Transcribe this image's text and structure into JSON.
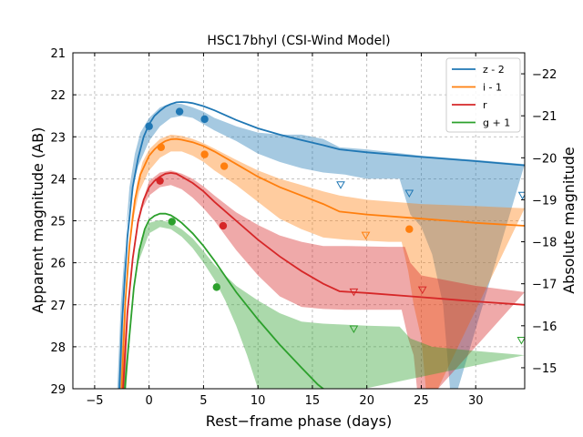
{
  "chart_data": {
    "type": "line",
    "title": "HSC17bhyl (CSI-Wind Model)",
    "xlabel": "Rest−frame phase (days)",
    "ylabel": "Apparent magnitude (AB)",
    "ylabel_right": "Absolute magnitude",
    "xlim": [
      -7,
      34.5
    ],
    "ylim": [
      29,
      21
    ],
    "ylim_right": [
      -14.5,
      -22.5
    ],
    "grid": true,
    "legend_position": "top-right",
    "x_ticks": [
      -5,
      0,
      5,
      10,
      15,
      20,
      25,
      30
    ],
    "y_ticks": [
      21,
      22,
      23,
      24,
      25,
      26,
      27,
      28,
      29
    ],
    "y_ticks_right": [
      -15,
      -16,
      -17,
      -18,
      -19,
      -20,
      -21,
      -22
    ],
    "series": [
      {
        "name": "z - 2",
        "color": "#1f77b4",
        "model": [
          [
            -2.8,
            29.5
          ],
          [
            -2.5,
            27.5
          ],
          [
            -2.0,
            25.4
          ],
          [
            -1.5,
            24.2
          ],
          [
            -1.0,
            23.5
          ],
          [
            -0.5,
            23.0
          ],
          [
            0,
            22.7
          ],
          [
            0.5,
            22.5
          ],
          [
            1.0,
            22.38
          ],
          [
            1.5,
            22.28
          ],
          [
            2.0,
            22.22
          ],
          [
            2.5,
            22.18
          ],
          [
            3.0,
            22.17
          ],
          [
            3.5,
            22.18
          ],
          [
            4.0,
            22.2
          ],
          [
            5.0,
            22.27
          ],
          [
            6.0,
            22.37
          ],
          [
            8.0,
            22.6
          ],
          [
            10.0,
            22.8
          ],
          [
            12.0,
            22.95
          ],
          [
            14.0,
            23.08
          ],
          [
            16.0,
            23.2
          ],
          [
            17.5,
            23.3
          ],
          [
            20.0,
            23.37
          ],
          [
            25.0,
            23.48
          ],
          [
            30.0,
            23.58
          ],
          [
            34.5,
            23.68
          ]
        ],
        "band_upper": [
          [
            -2.6,
            29.5
          ],
          [
            -2.2,
            25.5
          ],
          [
            -1.8,
            24.2
          ],
          [
            -1.3,
            23.4
          ],
          [
            -0.8,
            22.9
          ],
          [
            0,
            22.55
          ],
          [
            1.0,
            22.3
          ],
          [
            2.0,
            22.2
          ],
          [
            3.0,
            22.22
          ],
          [
            4.0,
            22.3
          ],
          [
            5.0,
            22.4
          ],
          [
            6.0,
            22.55
          ],
          [
            8.0,
            22.75
          ],
          [
            10.0,
            22.9
          ],
          [
            12.0,
            22.95
          ],
          [
            14.0,
            22.95
          ],
          [
            16.0,
            23.05
          ],
          [
            17.5,
            23.25
          ],
          [
            20.0,
            23.3
          ],
          [
            25.0,
            23.45
          ],
          [
            30.0,
            23.55
          ],
          [
            34.5,
            23.65
          ]
        ],
        "band_lower": [
          [
            -3.0,
            29.5
          ],
          [
            -2.6,
            27.0
          ],
          [
            -2.1,
            25.2
          ],
          [
            -1.6,
            24.3
          ],
          [
            -1.0,
            23.7
          ],
          [
            0,
            23.1
          ],
          [
            1.0,
            22.75
          ],
          [
            2.0,
            22.55
          ],
          [
            3.0,
            22.5
          ],
          [
            4.0,
            22.55
          ],
          [
            5.0,
            22.7
          ],
          [
            6.0,
            22.85
          ],
          [
            8.0,
            23.1
          ],
          [
            10.0,
            23.4
          ],
          [
            12.0,
            23.6
          ],
          [
            14.0,
            23.75
          ],
          [
            16.0,
            23.85
          ],
          [
            18.0,
            23.9
          ],
          [
            20.0,
            24.0
          ],
          [
            23.0,
            24.0
          ],
          [
            24.0,
            24.85
          ],
          [
            25.0,
            25.15
          ],
          [
            26.0,
            25.8
          ],
          [
            27.0,
            27.0
          ],
          [
            27.8,
            29.5
          ]
        ],
        "points": [
          [
            0,
            22.75
          ],
          [
            2.8,
            22.4
          ],
          [
            5.1,
            22.58
          ]
        ],
        "upper_limits": [
          [
            17.6,
            24.15
          ],
          [
            23.9,
            24.35
          ],
          [
            34.3,
            24.4
          ]
        ]
      },
      {
        "name": "i - 1",
        "color": "#ff7f0e",
        "model": [
          [
            -2.6,
            29.5
          ],
          [
            -2.2,
            27.0
          ],
          [
            -1.8,
            25.6
          ],
          [
            -1.3,
            24.5
          ],
          [
            -0.8,
            23.9
          ],
          [
            0,
            23.45
          ],
          [
            0.5,
            23.3
          ],
          [
            1.0,
            23.18
          ],
          [
            1.5,
            23.1
          ],
          [
            2.0,
            23.06
          ],
          [
            2.5,
            23.05
          ],
          [
            3.0,
            23.07
          ],
          [
            4.0,
            23.13
          ],
          [
            5.0,
            23.22
          ],
          [
            6.0,
            23.35
          ],
          [
            8.0,
            23.65
          ],
          [
            10.0,
            23.95
          ],
          [
            12.0,
            24.2
          ],
          [
            14.0,
            24.4
          ],
          [
            16.0,
            24.6
          ],
          [
            17.5,
            24.78
          ],
          [
            20.0,
            24.85
          ],
          [
            25.0,
            24.95
          ],
          [
            30.0,
            25.05
          ],
          [
            34.5,
            25.12
          ]
        ],
        "band_upper": [
          [
            -2.4,
            29.5
          ],
          [
            -2.0,
            26.0
          ],
          [
            -1.6,
            24.9
          ],
          [
            -1.1,
            24.1
          ],
          [
            -0.6,
            23.6
          ],
          [
            0,
            23.3
          ],
          [
            1.0,
            23.05
          ],
          [
            2.0,
            22.95
          ],
          [
            3.0,
            22.98
          ],
          [
            4.0,
            23.05
          ],
          [
            5.0,
            23.15
          ],
          [
            6.0,
            23.28
          ],
          [
            8.0,
            23.55
          ],
          [
            10.0,
            23.8
          ],
          [
            12.0,
            24.0
          ],
          [
            14.0,
            24.15
          ],
          [
            16.0,
            24.3
          ],
          [
            17.5,
            24.4
          ],
          [
            20.0,
            24.5
          ],
          [
            25.0,
            24.6
          ],
          [
            30.0,
            24.65
          ],
          [
            34.5,
            24.7
          ]
        ],
        "band_lower": [
          [
            -2.8,
            29.5
          ],
          [
            -2.4,
            27.5
          ],
          [
            -1.9,
            25.8
          ],
          [
            -1.4,
            24.9
          ],
          [
            -0.9,
            24.3
          ],
          [
            0,
            23.8
          ],
          [
            1.0,
            23.5
          ],
          [
            2.0,
            23.35
          ],
          [
            3.0,
            23.35
          ],
          [
            4.0,
            23.45
          ],
          [
            5.0,
            23.6
          ],
          [
            6.0,
            23.8
          ],
          [
            8.0,
            24.15
          ],
          [
            10.0,
            24.55
          ],
          [
            12.0,
            24.95
          ],
          [
            14.0,
            25.2
          ],
          [
            16.0,
            25.4
          ],
          [
            18.0,
            25.45
          ],
          [
            22.0,
            25.5
          ],
          [
            23.2,
            25.5
          ],
          [
            23.8,
            26.2
          ],
          [
            24.3,
            27.0
          ],
          [
            25.0,
            27.8
          ],
          [
            25.6,
            29.5
          ]
        ],
        "points": [
          [
            1.1,
            23.25
          ],
          [
            5.1,
            23.42
          ],
          [
            6.9,
            23.7
          ],
          [
            23.9,
            25.2
          ]
        ],
        "upper_limits": [
          [
            19.9,
            25.35
          ]
        ]
      },
      {
        "name": "r",
        "color": "#d62728",
        "model": [
          [
            -2.5,
            29.5
          ],
          [
            -2.0,
            27.2
          ],
          [
            -1.5,
            25.9
          ],
          [
            -1.0,
            25.0
          ],
          [
            -0.5,
            24.5
          ],
          [
            0,
            24.2
          ],
          [
            0.5,
            24.05
          ],
          [
            1.0,
            23.95
          ],
          [
            1.5,
            23.88
          ],
          [
            2.0,
            23.86
          ],
          [
            2.5,
            23.88
          ],
          [
            3.0,
            23.95
          ],
          [
            4.0,
            24.1
          ],
          [
            5.0,
            24.3
          ],
          [
            6.0,
            24.55
          ],
          [
            8.0,
            25.0
          ],
          [
            10.0,
            25.45
          ],
          [
            12.0,
            25.85
          ],
          [
            14.0,
            26.2
          ],
          [
            16.0,
            26.5
          ],
          [
            17.5,
            26.68
          ],
          [
            20.0,
            26.72
          ],
          [
            25.0,
            26.82
          ],
          [
            30.0,
            26.92
          ],
          [
            34.5,
            27.0
          ]
        ],
        "band_upper": [
          [
            -2.3,
            29.5
          ],
          [
            -1.8,
            26.5
          ],
          [
            -1.3,
            25.4
          ],
          [
            -0.8,
            24.7
          ],
          [
            0,
            24.05
          ],
          [
            1.0,
            23.85
          ],
          [
            2.0,
            23.8
          ],
          [
            3.0,
            23.88
          ],
          [
            4.0,
            24.0
          ],
          [
            5.0,
            24.18
          ],
          [
            6.0,
            24.4
          ],
          [
            8.0,
            24.8
          ],
          [
            10.0,
            25.1
          ],
          [
            12.0,
            25.35
          ],
          [
            14.0,
            25.5
          ],
          [
            16.0,
            25.6
          ],
          [
            18.0,
            25.6
          ],
          [
            22.0,
            25.62
          ],
          [
            23.5,
            25.62
          ],
          [
            24.0,
            26.0
          ],
          [
            25.0,
            26.3
          ],
          [
            30.0,
            26.55
          ],
          [
            34.5,
            26.7
          ]
        ],
        "band_lower": [
          [
            -2.7,
            29.5
          ],
          [
            -2.2,
            27.8
          ],
          [
            -1.7,
            26.3
          ],
          [
            -1.2,
            25.3
          ],
          [
            -0.6,
            24.7
          ],
          [
            0,
            24.4
          ],
          [
            1.0,
            24.2
          ],
          [
            2.0,
            24.15
          ],
          [
            3.0,
            24.25
          ],
          [
            4.0,
            24.45
          ],
          [
            5.0,
            24.7
          ],
          [
            6.0,
            25.0
          ],
          [
            8.0,
            25.7
          ],
          [
            10.0,
            26.3
          ],
          [
            12.0,
            26.8
          ],
          [
            14.0,
            27.05
          ],
          [
            16.0,
            27.1
          ],
          [
            18.0,
            27.12
          ],
          [
            22.0,
            27.12
          ],
          [
            23.2,
            27.12
          ],
          [
            23.8,
            27.8
          ],
          [
            24.3,
            28.2
          ],
          [
            24.8,
            29.5
          ]
        ],
        "points": [
          [
            1.0,
            24.05
          ],
          [
            6.8,
            25.12
          ]
        ],
        "upper_limits": [
          [
            18.8,
            26.7
          ],
          [
            25.1,
            26.65
          ]
        ]
      },
      {
        "name": "g + 1",
        "color": "#2ca02c",
        "model": [
          [
            -2.4,
            29.5
          ],
          [
            -1.9,
            28.0
          ],
          [
            -1.4,
            26.6
          ],
          [
            -0.9,
            25.7
          ],
          [
            -0.4,
            25.2
          ],
          [
            0,
            24.98
          ],
          [
            0.5,
            24.88
          ],
          [
            1.0,
            24.83
          ],
          [
            1.5,
            24.83
          ],
          [
            2.0,
            24.87
          ],
          [
            2.5,
            24.95
          ],
          [
            3.0,
            25.05
          ],
          [
            4.0,
            25.3
          ],
          [
            5.0,
            25.6
          ],
          [
            6.0,
            25.95
          ],
          [
            8.0,
            26.7
          ],
          [
            10.0,
            27.35
          ],
          [
            12.0,
            27.95
          ],
          [
            14.0,
            28.5
          ],
          [
            15.5,
            28.9
          ],
          [
            16.0,
            29.0
          ],
          [
            17.0,
            29.3
          ]
        ],
        "band_upper": [
          [
            -2.2,
            29.5
          ],
          [
            -1.7,
            27.3
          ],
          [
            -1.2,
            26.1
          ],
          [
            -0.7,
            25.4
          ],
          [
            0,
            25.05
          ],
          [
            1.0,
            24.98
          ],
          [
            2.0,
            25.05
          ],
          [
            3.0,
            25.2
          ],
          [
            4.0,
            25.42
          ],
          [
            5.0,
            25.72
          ],
          [
            6.0,
            26.05
          ],
          [
            8.0,
            26.55
          ],
          [
            10.0,
            26.9
          ],
          [
            12.0,
            27.2
          ],
          [
            14.0,
            27.4
          ],
          [
            16.0,
            27.45
          ],
          [
            20.0,
            27.5
          ],
          [
            23.0,
            27.52
          ],
          [
            24.0,
            27.8
          ],
          [
            26.0,
            28.0
          ],
          [
            30.0,
            28.1
          ],
          [
            34.5,
            28.2
          ]
        ],
        "band_lower": [
          [
            -2.6,
            29.5
          ],
          [
            -2.1,
            28.3
          ],
          [
            -1.6,
            27.0
          ],
          [
            -1.0,
            26.0
          ],
          [
            0,
            25.3
          ],
          [
            1.0,
            25.15
          ],
          [
            2.0,
            25.2
          ],
          [
            3.0,
            25.38
          ],
          [
            4.0,
            25.65
          ],
          [
            5.0,
            26.0
          ],
          [
            6.0,
            26.4
          ],
          [
            7.0,
            26.9
          ],
          [
            8.0,
            27.5
          ],
          [
            9.0,
            28.2
          ],
          [
            10.0,
            29.0
          ],
          [
            10.5,
            29.5
          ]
        ],
        "points": [
          [
            2.1,
            25.02
          ],
          [
            6.2,
            26.58
          ]
        ],
        "upper_limits": [
          [
            18.8,
            27.58
          ],
          [
            34.2,
            27.85
          ]
        ]
      }
    ]
  }
}
